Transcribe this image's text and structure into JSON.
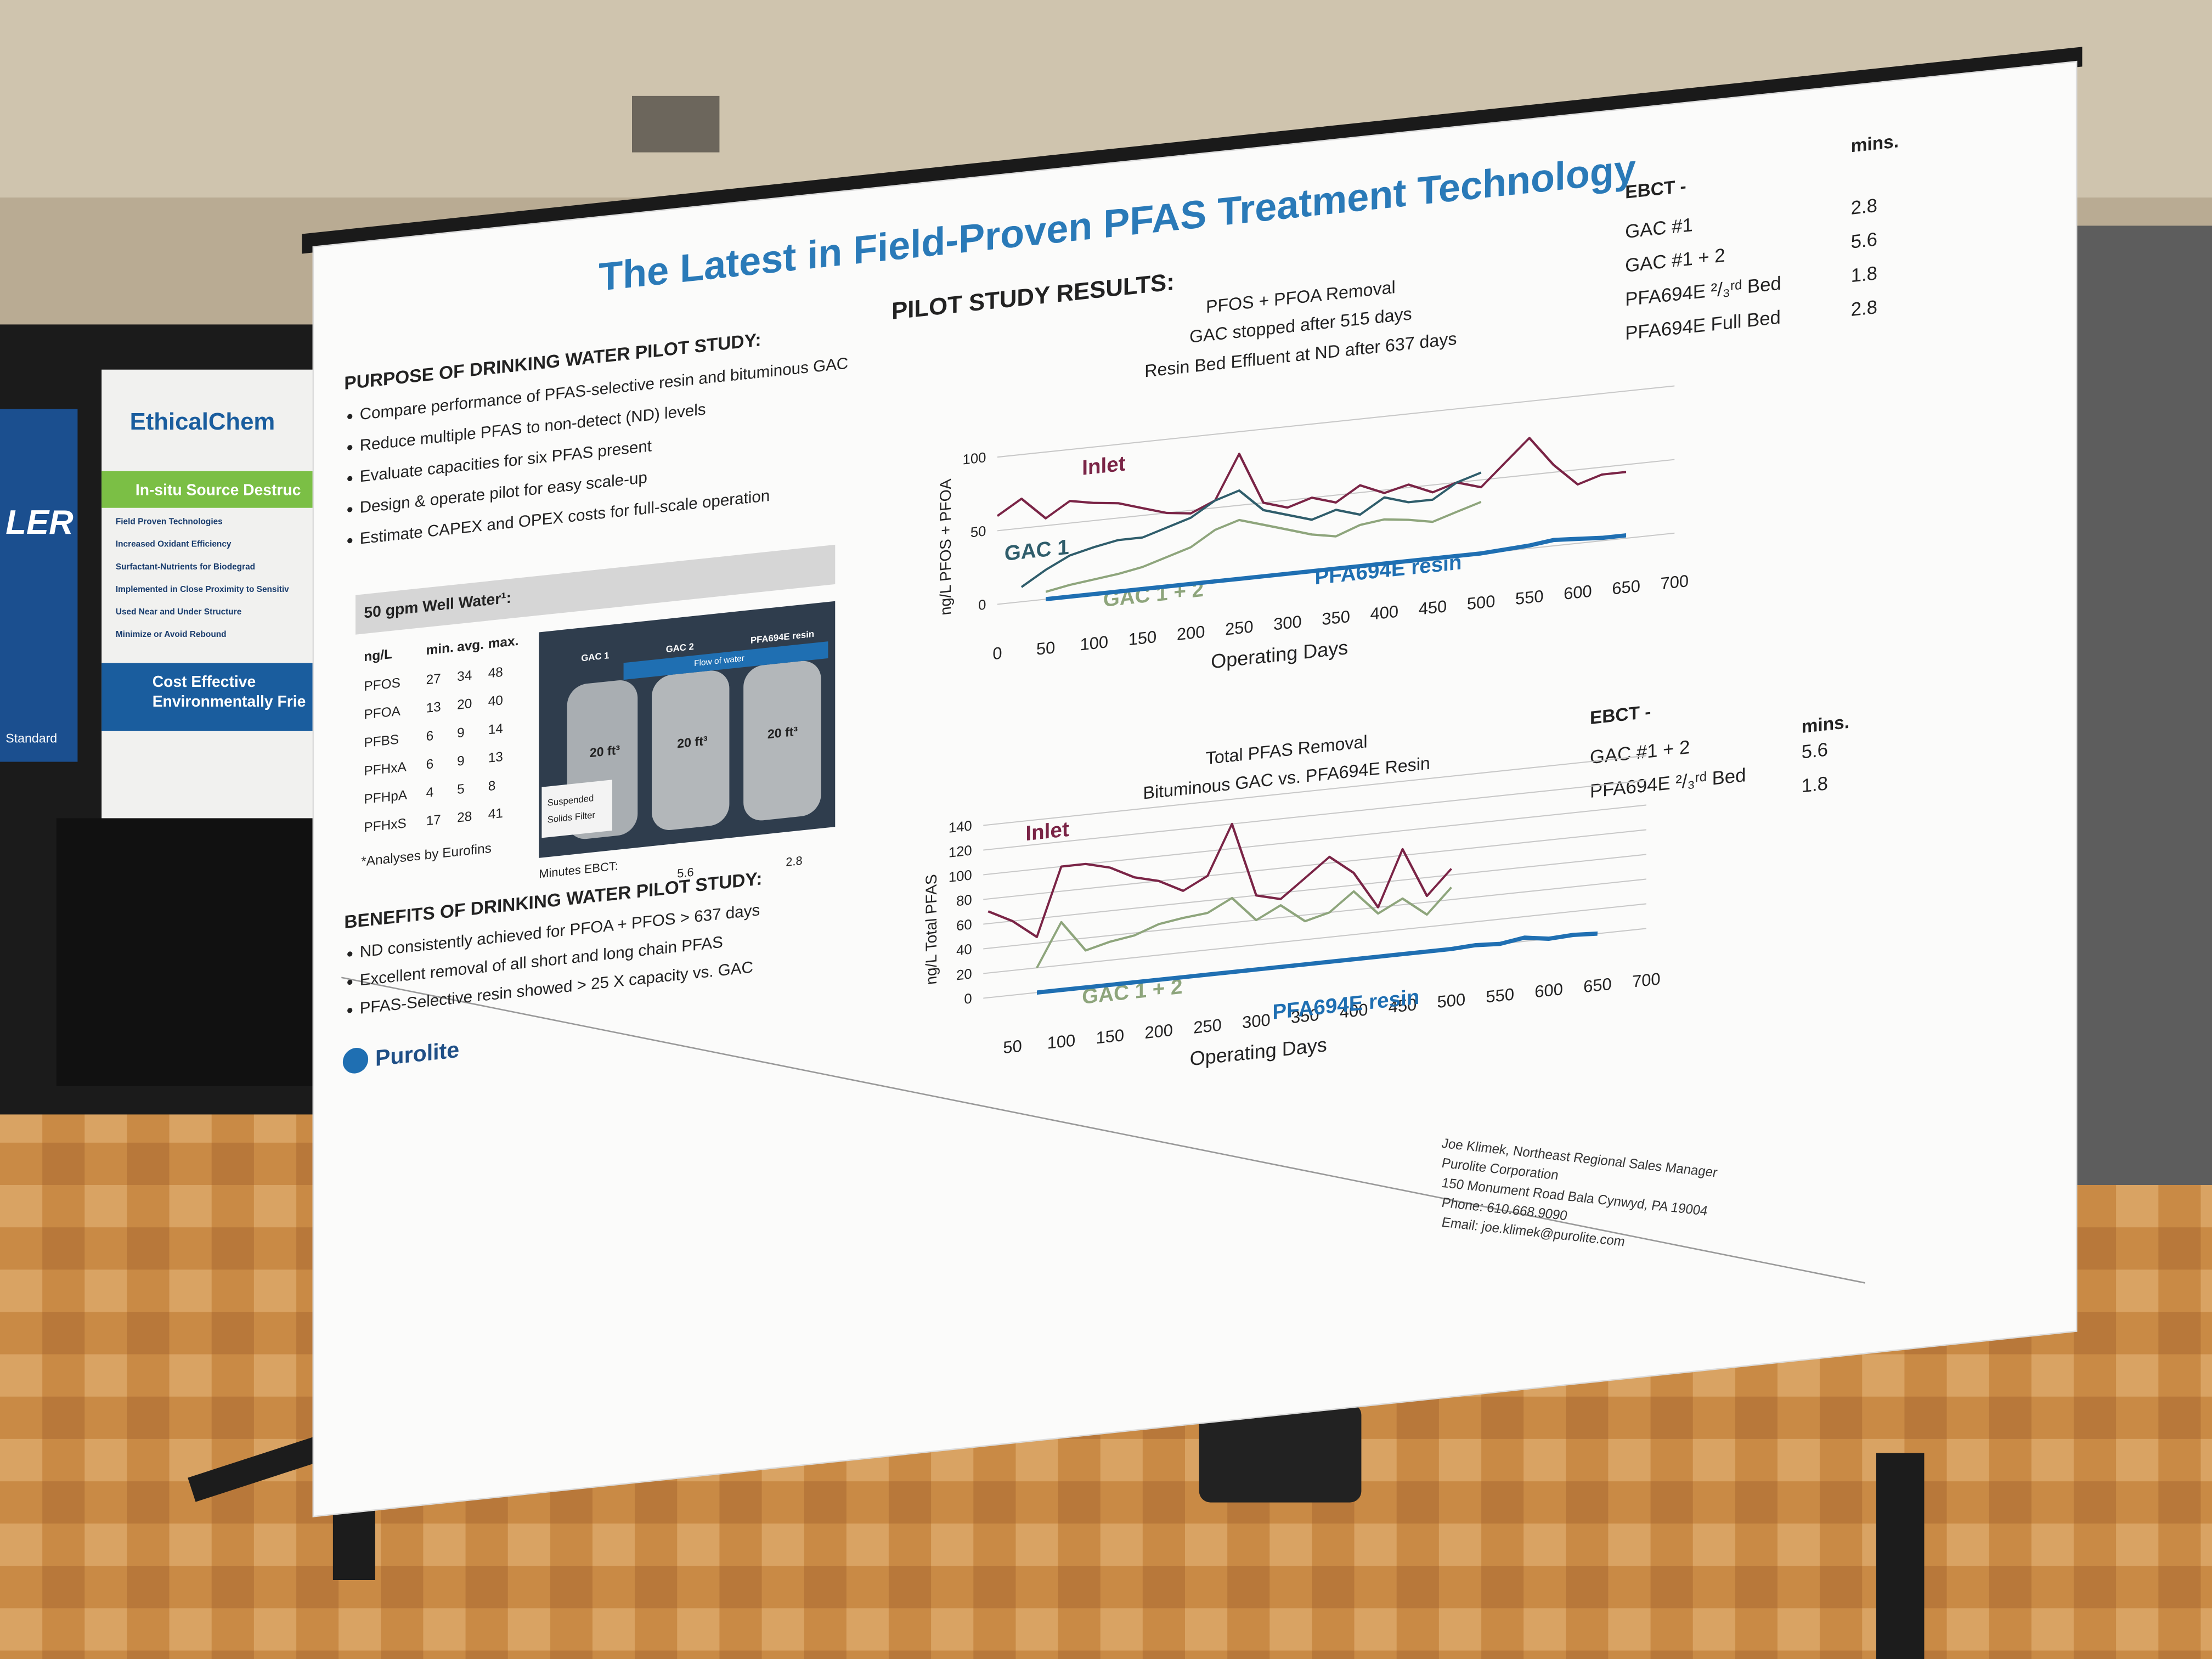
{
  "booth": {
    "brand": "EthicalChem",
    "banner": "In-situ Source Destruc",
    "items": [
      "Field Proven Technologies",
      "Increased Oxidant Efficiency",
      "Surfactant-Nutrients for Biodegrad",
      "Implemented in Close Proximity to Sensitiv",
      "Used Near and Under Structure",
      "Minimize or Avoid Rebound"
    ],
    "footer": [
      "Cost Effective",
      "Environmentally Frie"
    ],
    "side_left": "LER",
    "side_bottom": "Standard"
  },
  "poster": {
    "title": "The Latest in Field-Proven PFAS Treatment Technology",
    "purpose": {
      "heading": "PURPOSE OF DRINKING WATER PILOT STUDY:",
      "bullets": [
        "Compare performance of PFAS-selective resin and bituminous GAC",
        "Reduce multiple PFAS to non-detect (ND) levels",
        "Evaluate capacities for six PFAS present",
        "Design & operate pilot for easy scale-up",
        "Estimate CAPEX and OPEX costs for full-scale operation"
      ]
    },
    "well_water": {
      "heading": "50 gpm Well Water¹:",
      "columns": [
        "ng/L",
        "min.",
        "avg.",
        "max."
      ],
      "rows": [
        [
          "PFOS",
          27,
          34,
          48
        ],
        [
          "PFOA",
          13,
          20,
          40
        ],
        [
          "PFBS",
          6,
          9,
          14
        ],
        [
          "PFHxA",
          6,
          9,
          13
        ],
        [
          "PFHpA",
          4,
          5,
          8
        ],
        [
          "PFHxS",
          17,
          28,
          41
        ]
      ],
      "note": "*Analyses by Eurofins"
    },
    "photo": {
      "labels": [
        "GAC 1",
        "GAC 2",
        "PFA694E resin"
      ],
      "flow": "Flow of water",
      "volumes": [
        "20 ft³",
        "20 ft³",
        "20 ft³"
      ],
      "filter": [
        "Suspended",
        "Solids Filter"
      ],
      "ebct_label": "Minutes EBCT:",
      "ebct_values": [
        5.6,
        2.8
      ]
    },
    "benefits": {
      "heading": "BENEFITS OF DRINKING WATER PILOT STUDY:",
      "bullets": [
        "ND consistently achieved for PFOA + PFOS > 637 days",
        "Excellent removal of all short and long chain PFAS",
        "PFAS-Selective resin showed > 25 X capacity vs. GAC"
      ]
    },
    "logo": "Purolite",
    "results_heading": "PILOT STUDY RESULTS:",
    "ebct_tables": [
      {
        "heading": "EBCT -",
        "unit": "mins.",
        "rows": [
          [
            "GAC #1",
            2.8
          ],
          [
            "GAC #1 + 2",
            5.6
          ],
          [
            "PFA694E ²/₃ʳᵈ Bed",
            1.8
          ],
          [
            "PFA694E Full Bed",
            2.8
          ]
        ]
      },
      {
        "heading": "EBCT -",
        "unit": "mins.",
        "rows": [
          [
            "GAC #1 + 2",
            5.6
          ],
          [
            "PFA694E ²/₃ʳᵈ Bed",
            1.8
          ]
        ]
      }
    ],
    "contact": [
      "Joe Klimek, Northeast Regional Sales Manager",
      "Purolite Corporation",
      "150 Monument Road Bala Cynwyd, PA 19004",
      "Phone: 610.668.9090",
      "Email: joe.klimek@purolite.com"
    ]
  },
  "chart_data": [
    {
      "type": "line",
      "title": "PFOS + PFOA Removal",
      "subtitles": [
        "GAC stopped after 515 days",
        "Resin Bed Effluent at ND after 637 days"
      ],
      "x_label": "Operating Days",
      "y_label": "ng/L PFOS + PFOA",
      "x": [
        0,
        25,
        50,
        75,
        100,
        125,
        150,
        175,
        200,
        225,
        250,
        275,
        300,
        325,
        350,
        375,
        400,
        425,
        450,
        475,
        500,
        525,
        550,
        575,
        600,
        625,
        650
      ],
      "series": [
        {
          "name": "Inlet",
          "color": "#7a2446",
          "values": [
            60,
            70,
            55,
            65,
            62,
            60,
            55,
            50,
            48,
            55,
            85,
            50,
            45,
            50,
            45,
            55,
            48,
            52,
            45,
            50,
            45,
            60,
            75,
            55,
            40,
            45,
            45
          ]
        },
        {
          "name": "GAC 1",
          "color": "#2f5d6b",
          "values": [
            null,
            10,
            20,
            28,
            32,
            35,
            35,
            40,
            45,
            55,
            60,
            45,
            40,
            35,
            40,
            35,
            45,
            40,
            40,
            50,
            55,
            null,
            null,
            null,
            null,
            null,
            null
          ]
        },
        {
          "name": "GAC 1 + 2",
          "color": "#8ea57c",
          "values": [
            null,
            null,
            5,
            8,
            10,
            12,
            15,
            20,
            25,
            35,
            40,
            35,
            30,
            25,
            22,
            28,
            30,
            28,
            25,
            30,
            35,
            null,
            null,
            null,
            null,
            null,
            null
          ]
        },
        {
          "name": "PFA694E resin",
          "color": "#1f6fb2",
          "values": [
            null,
            null,
            0,
            0,
            0,
            0,
            0,
            0,
            0,
            0,
            0,
            0,
            0,
            0,
            0,
            0,
            0,
            0,
            0,
            0,
            0,
            1,
            2,
            4,
            3,
            2,
            2
          ]
        }
      ],
      "xlim": [
        0,
        700
      ],
      "xticks": [
        0,
        50,
        100,
        150,
        200,
        250,
        300,
        350,
        400,
        450,
        500,
        550,
        600,
        650,
        700
      ],
      "ylim": [
        -15,
        100
      ],
      "yticks": [
        0,
        50,
        100
      ],
      "grid": true
    },
    {
      "type": "line",
      "title": "Total PFAS Removal",
      "subtitles": [
        "Bituminous GAC vs. PFA694E Resin"
      ],
      "x_label": "Operating Days",
      "y_label": "ng/L Total PFAS",
      "x": [
        25,
        50,
        75,
        100,
        125,
        150,
        175,
        200,
        225,
        250,
        275,
        300,
        325,
        350,
        375,
        400,
        425,
        450,
        475,
        500,
        525,
        550,
        575,
        600,
        625,
        650
      ],
      "series": [
        {
          "name": "Inlet",
          "color": "#7a2446",
          "values": [
            70,
            60,
            45,
            100,
            100,
            95,
            85,
            80,
            70,
            80,
            120,
            60,
            55,
            70,
            85,
            70,
            40,
            85,
            45,
            65,
            null,
            null,
            null,
            null,
            null,
            null
          ]
        },
        {
          "name": "GAC 1 + 2",
          "color": "#8ea57c",
          "values": [
            null,
            null,
            20,
            55,
            30,
            35,
            38,
            45,
            48,
            50,
            60,
            40,
            50,
            35,
            40,
            55,
            35,
            45,
            30,
            50,
            null,
            null,
            null,
            null,
            null,
            null
          ]
        },
        {
          "name": "PFA694E resin",
          "color": "#1f6fb2",
          "values": [
            null,
            null,
            0,
            0,
            0,
            0,
            0,
            0,
            0,
            0,
            0,
            0,
            0,
            0,
            0,
            0,
            0,
            0,
            0,
            0,
            1,
            0,
            3,
            0,
            1,
            0
          ]
        }
      ],
      "xlim": [
        20,
        700
      ],
      "xticks": [
        50,
        100,
        150,
        200,
        250,
        300,
        350,
        400,
        450,
        500,
        550,
        600,
        650,
        700
      ],
      "ylim": [
        -20,
        140
      ],
      "yticks": [
        0,
        20,
        40,
        60,
        80,
        100,
        120,
        140
      ],
      "grid": true
    }
  ]
}
